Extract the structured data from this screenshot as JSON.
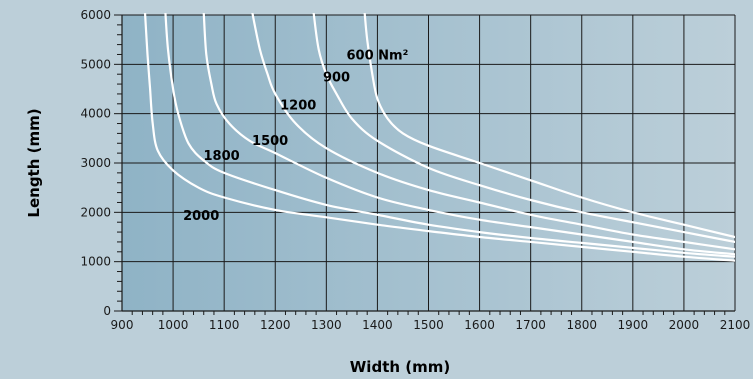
{
  "chart_data": {
    "type": "line",
    "xlabel": "Width (mm)",
    "ylabel": "Length (mm)",
    "xlim": [
      900,
      2100
    ],
    "ylim": [
      0,
      6000
    ],
    "x_ticks": [
      900,
      1000,
      1100,
      1200,
      1300,
      1400,
      1500,
      1600,
      1700,
      1800,
      1900,
      2000,
      2100
    ],
    "y_ticks": [
      0,
      1000,
      2000,
      3000,
      4000,
      5000,
      6000
    ],
    "grid": true,
    "colors": {
      "background": "#bccfd9",
      "plot_left": "#8fb3c6",
      "plot_right": "#bccfd9",
      "grid": "#1a1a1a",
      "curve": "#ffffff"
    },
    "series": [
      {
        "label": "600 Nm²",
        "label_at": [
          1400,
          5100
        ],
        "points": [
          [
            1375,
            6050
          ],
          [
            1380,
            5500
          ],
          [
            1390,
            4800
          ],
          [
            1400,
            4300
          ],
          [
            1420,
            3900
          ],
          [
            1450,
            3600
          ],
          [
            1500,
            3350
          ],
          [
            1600,
            3000
          ],
          [
            1700,
            2650
          ],
          [
            1800,
            2300
          ],
          [
            1900,
            2000
          ],
          [
            2000,
            1750
          ],
          [
            2100,
            1500
          ]
        ]
      },
      {
        "label": "900",
        "label_at": [
          1320,
          4650
        ],
        "points": [
          [
            1275,
            6050
          ],
          [
            1285,
            5300
          ],
          [
            1300,
            4800
          ],
          [
            1320,
            4400
          ],
          [
            1350,
            3900
          ],
          [
            1400,
            3450
          ],
          [
            1500,
            2900
          ],
          [
            1600,
            2550
          ],
          [
            1700,
            2250
          ],
          [
            1800,
            2000
          ],
          [
            1900,
            1800
          ],
          [
            2000,
            1600
          ],
          [
            2100,
            1400
          ]
        ]
      },
      {
        "label": "1200",
        "label_at": [
          1245,
          4080
        ],
        "points": [
          [
            1155,
            6050
          ],
          [
            1170,
            5300
          ],
          [
            1185,
            4800
          ],
          [
            1200,
            4400
          ],
          [
            1240,
            3800
          ],
          [
            1300,
            3300
          ],
          [
            1400,
            2800
          ],
          [
            1500,
            2450
          ],
          [
            1600,
            2200
          ],
          [
            1700,
            1950
          ],
          [
            1800,
            1750
          ],
          [
            1900,
            1550
          ],
          [
            2000,
            1400
          ],
          [
            2100,
            1250
          ]
        ]
      },
      {
        "label": "1500",
        "label_at": [
          1190,
          3360
        ],
        "points": [
          [
            1060,
            6050
          ],
          [
            1065,
            5200
          ],
          [
            1075,
            4600
          ],
          [
            1085,
            4200
          ],
          [
            1110,
            3800
          ],
          [
            1150,
            3450
          ],
          [
            1200,
            3200
          ],
          [
            1300,
            2700
          ],
          [
            1400,
            2300
          ],
          [
            1500,
            2050
          ],
          [
            1600,
            1850
          ],
          [
            1700,
            1700
          ],
          [
            1800,
            1550
          ],
          [
            1900,
            1400
          ],
          [
            2000,
            1250
          ],
          [
            2100,
            1150
          ]
        ]
      },
      {
        "label": "1800",
        "label_at": [
          1095,
          3060
        ],
        "points": [
          [
            985,
            6050
          ],
          [
            990,
            5300
          ],
          [
            1000,
            4500
          ],
          [
            1010,
            4000
          ],
          [
            1030,
            3400
          ],
          [
            1060,
            3050
          ],
          [
            1100,
            2800
          ],
          [
            1200,
            2450
          ],
          [
            1300,
            2150
          ],
          [
            1400,
            1950
          ],
          [
            1500,
            1750
          ],
          [
            1600,
            1600
          ],
          [
            1700,
            1480
          ],
          [
            1800,
            1380
          ],
          [
            1900,
            1280
          ],
          [
            2000,
            1180
          ],
          [
            2100,
            1100
          ]
        ]
      },
      {
        "label": "2000",
        "label_at": [
          1055,
          1840
        ],
        "points": [
          [
            945,
            6050
          ],
          [
            950,
            5200
          ],
          [
            955,
            4500
          ],
          [
            960,
            3800
          ],
          [
            970,
            3250
          ],
          [
            1000,
            2850
          ],
          [
            1050,
            2500
          ],
          [
            1100,
            2300
          ],
          [
            1200,
            2050
          ],
          [
            1300,
            1900
          ],
          [
            1400,
            1750
          ],
          [
            1500,
            1620
          ],
          [
            1600,
            1500
          ],
          [
            1700,
            1400
          ],
          [
            1800,
            1300
          ],
          [
            1900,
            1200
          ],
          [
            2000,
            1100
          ],
          [
            2100,
            1020
          ]
        ]
      }
    ]
  }
}
